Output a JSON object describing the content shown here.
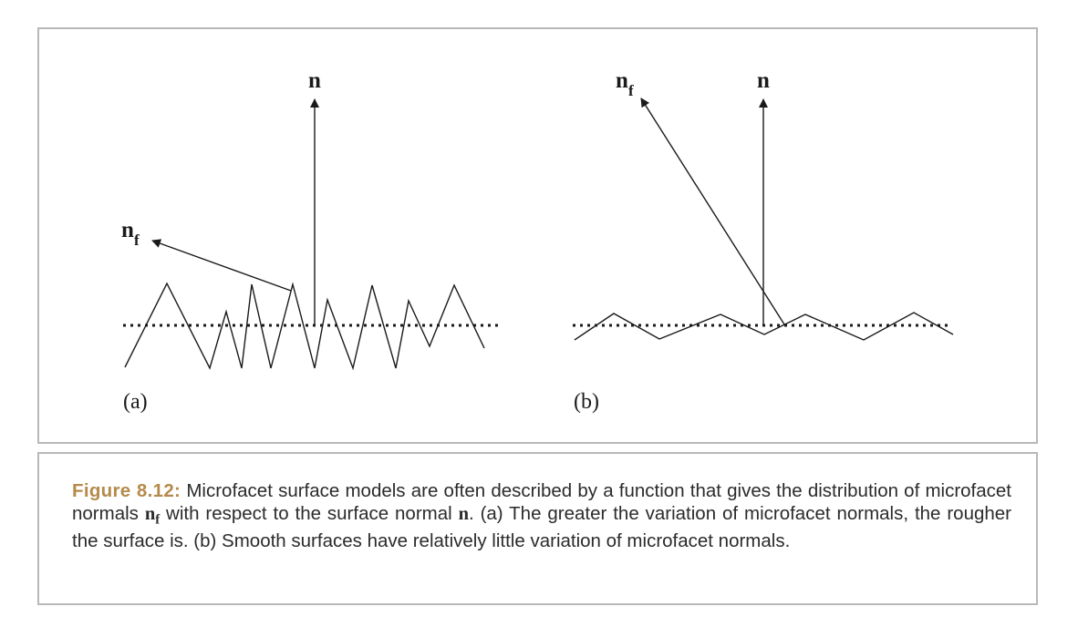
{
  "diagram": {
    "panel_a": {
      "label": "(a)",
      "normal_label": "n",
      "facet_normal_label": "n",
      "facet_normal_subscript": "f"
    },
    "panel_b": {
      "label": "(b)",
      "normal_label": "n",
      "facet_normal_label": "n",
      "facet_normal_subscript": "f"
    }
  },
  "caption": {
    "figure_label": "Figure 8.12:",
    "text_part1": " Microfacet surface models are often described by a function that gives the distribution of microfacet normals ",
    "nf_symbol": "n",
    "nf_subscript": "f",
    "text_part2": " with respect to the surface normal ",
    "n_symbol": "n",
    "text_part3": ". (a) The greater the variation of microfacet normals, the rougher the surface is. (b) Smooth surfaces have relatively little variation of microfacet normals."
  },
  "colors": {
    "line": "#1a1a1a",
    "border": "#b8b8b8",
    "figure_label": "#b58a4a",
    "caption_text": "#2b2b2b"
  }
}
